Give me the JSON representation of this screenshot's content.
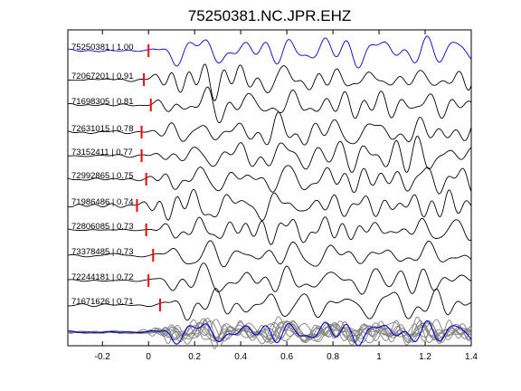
{
  "chart_data": {
    "type": "line",
    "title": "75250381.NC.JPR.EHZ",
    "xlabel": "",
    "ylabel": "",
    "xlim": [
      -0.35,
      1.4
    ],
    "xticks": [
      "-0.2",
      "0",
      "0.2",
      "0.4",
      "0.6",
      "0.8",
      "1",
      "1.2",
      "1.4"
    ],
    "xtick_values": [
      -0.2,
      0,
      0.2,
      0.4,
      0.6,
      0.8,
      1.0,
      1.2,
      1.4
    ],
    "grid": false,
    "colors": {
      "reference": "#0000cc",
      "trace": "#000000",
      "pick": "#ff0000",
      "stack": "#808080"
    },
    "series": [
      {
        "label": "75250381 | 1.00",
        "pick_time": 0.0,
        "reference": true
      },
      {
        "label": "72067201 | 0.91",
        "pick_time": -0.02
      },
      {
        "label": "71698305 | 0.81",
        "pick_time": 0.01
      },
      {
        "label": "72631015 | 0.78",
        "pick_time": -0.03
      },
      {
        "label": "73152411 | 0.77",
        "pick_time": -0.03
      },
      {
        "label": "72992865 | 0.75",
        "pick_time": -0.01
      },
      {
        "label": "71986486 | 0.74",
        "pick_time": -0.05
      },
      {
        "label": "72806085 | 0.73",
        "pick_time": -0.01
      },
      {
        "label": "73378485 | 0.73",
        "pick_time": 0.02
      },
      {
        "label": "72244181 | 0.72",
        "pick_time": 0.0
      },
      {
        "label": "71671626 | 0.71",
        "pick_time": 0.05
      }
    ]
  }
}
